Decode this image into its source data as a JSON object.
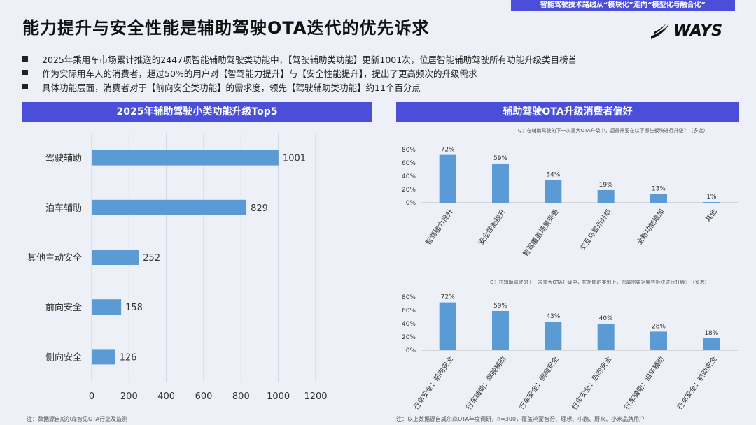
{
  "top_banner": "智能驾驶技术路线从“模块化”走向“模型化与融合化”",
  "title": "能力提升与安全性能是辅助驾驶OTA迭代的优先诉求",
  "logo_text": "WAYS",
  "bullets": [
    "2025年乘用车市场累计推送的2447项智能辅助驾驶类功能中，【驾驶辅助类功能】更新1001次，位居智能辅助驾驶所有功能升级类目榜首",
    "作为实际用车人的消费者，超过50%的用户对【智驾能力提升】与【安全性能提升】，提出了更高频次的升级需求",
    "具体功能层面，消费者对于【前向安全类功能】的需求度，领先【驾驶辅助类功能】约11个百分点"
  ],
  "left_header": "2025年辅助驾驶小类功能升级Top5",
  "right_header": "辅助驾驶OTA升级消费者偏好",
  "left_footnote": "注：数据源自威尔森智见OTA行业及监测",
  "right_footnote": "注：以上数据源自威尔森OTA年度调研，n=300，覆盖鸿蒙智行、理想、小鹏、蔚来、小米品牌用户",
  "colors": {
    "bar": "#5b9bd5",
    "accent": "#4a4ed8",
    "grid": "#d0d3dc"
  },
  "chart_data": [
    {
      "type": "bar",
      "orientation": "horizontal",
      "title": "2025年辅助驾驶小类功能升级Top5",
      "categories": [
        "驾驶辅助",
        "泊车辅助",
        "其他主动安全",
        "前向安全",
        "侧向安全"
      ],
      "values": [
        1001,
        829,
        252,
        158,
        126
      ],
      "value_labels": [
        "1001",
        "829",
        "252",
        "158",
        "126"
      ],
      "xlim": [
        0,
        1200
      ],
      "xticks": [
        0,
        200,
        400,
        600,
        800,
        1000,
        1200
      ],
      "xtick_labels": [
        "0",
        "200",
        "400",
        "600",
        "800",
        "1000",
        "1200"
      ],
      "grid": true
    },
    {
      "type": "bar",
      "question": "Q：在辅助驾驶的下一次重大OTA升级中，您最需要在以下哪些板块进行升级？（多选）",
      "categories": [
        "智驾能力提升",
        "安全性能提升",
        "智驾覆盖场景完善",
        "交互与显示升级",
        "全新功能增加",
        "其他"
      ],
      "values": [
        72,
        59,
        34,
        19,
        13,
        1
      ],
      "value_labels": [
        "72%",
        "59%",
        "34%",
        "19%",
        "13%",
        "1%"
      ],
      "ylim": [
        0,
        80
      ],
      "yticks": [
        0,
        20,
        40,
        60,
        80
      ],
      "ytick_labels": [
        "0%",
        "20%",
        "40%",
        "60%",
        "80%"
      ],
      "grid": false
    },
    {
      "type": "bar",
      "question": "Q：在辅助驾驶的下一次重大OTA升级中，在功能的类别上，您最需要对哪些板块进行升级？（多选）",
      "categories": [
        "行车安全：前向安全",
        "行车辅助：驾驶辅助",
        "行车安全：侧向安全",
        "行车安全：后向安全",
        "行车辅助：泊车辅助",
        "行车安全：被动安全"
      ],
      "values": [
        72,
        59,
        43,
        40,
        28,
        18
      ],
      "value_labels": [
        "72%",
        "59%",
        "43%",
        "40%",
        "28%",
        "18%"
      ],
      "ylim": [
        0,
        80
      ],
      "yticks": [
        0,
        20,
        40,
        60,
        80
      ],
      "ytick_labels": [
        "0%",
        "20%",
        "40%",
        "60%",
        "80%"
      ],
      "grid": false
    }
  ]
}
